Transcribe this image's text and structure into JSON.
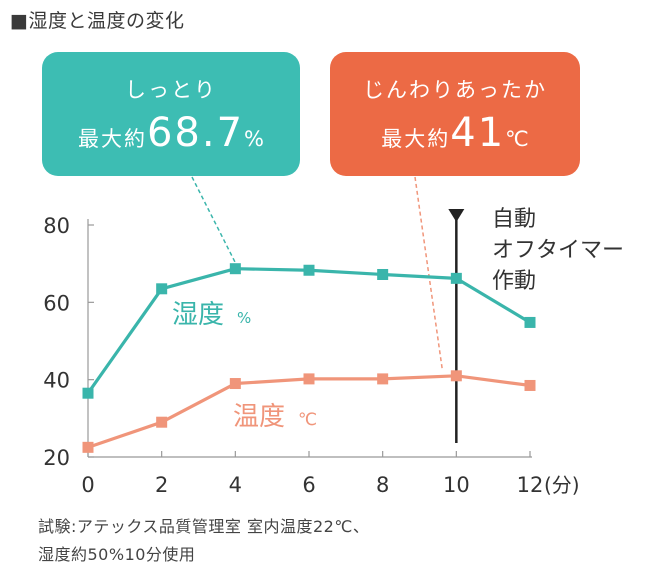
{
  "title": "■湿度と温度の変化",
  "callouts": {
    "humidity": {
      "line1": "しっとり",
      "prefix": "最大約",
      "value": "68.7",
      "unit": "%"
    },
    "temperature": {
      "line1": "じんわりあったか",
      "prefix": "最大約",
      "value": "41",
      "unit": "℃"
    }
  },
  "colors": {
    "humidity_line": "#3ab5ab",
    "humidity_box": "#3dbdb3",
    "temperature_line": "#f0957a",
    "temperature_box": "#ec6a45",
    "axis": "#999999",
    "text": "#333333"
  },
  "auto_off": {
    "lines": [
      "自動",
      "オフタイマー",
      "作動"
    ],
    "x": 10
  },
  "series_labels": {
    "humidity": {
      "text": "湿度",
      "unit": "%"
    },
    "temperature": {
      "text": "温度",
      "unit": "℃"
    }
  },
  "x_unit_label": "(分)",
  "notes": [
    "試験:アテックス品質管理室 室内温度22℃、",
    "湿度約50%10分使用"
  ],
  "chart_data": {
    "type": "line",
    "title": "湿度と温度の変化",
    "x": [
      0,
      2,
      4,
      6,
      8,
      10,
      12
    ],
    "xticks": [
      "0",
      "2",
      "4",
      "6",
      "8",
      "10",
      "12"
    ],
    "yticks": [
      "20",
      "40",
      "60",
      "80"
    ],
    "xlim": [
      0,
      12
    ],
    "ylim": [
      20,
      80
    ],
    "xlabel": "(分)",
    "ylabel": "",
    "grid": false,
    "series": [
      {
        "name": "湿度%",
        "values": [
          36.5,
          63.5,
          68.7,
          68.3,
          67.2,
          66.2,
          54.8
        ]
      },
      {
        "name": "温度℃",
        "values": [
          22.5,
          29,
          39,
          40.2,
          40.2,
          41,
          38.5
        ]
      }
    ]
  }
}
